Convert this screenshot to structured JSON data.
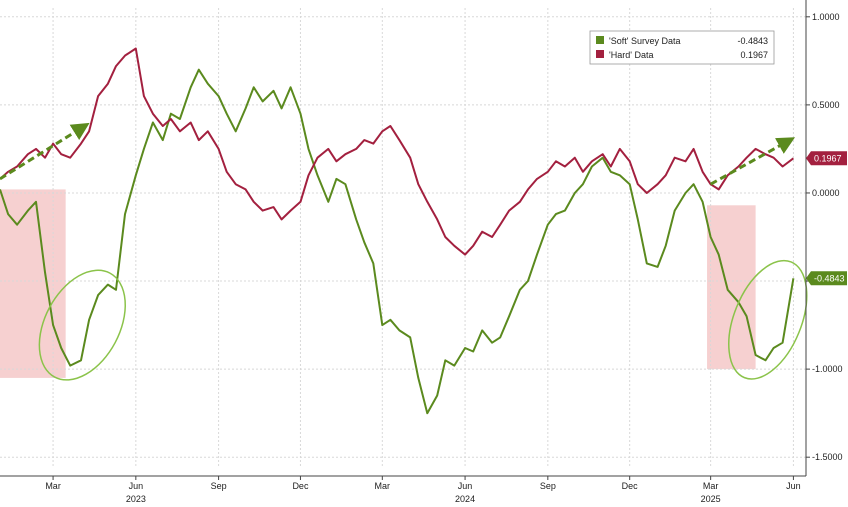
{
  "chart_data": {
    "type": "line",
    "y_ticks": [
      "1.0000",
      "0.5000",
      "0.0000",
      "-0.5000",
      "-1.0000",
      "-1.5000"
    ],
    "y_tick_values": [
      1.0,
      0.5,
      0.0,
      -0.5,
      -1.0,
      -1.5
    ],
    "ylim": [
      -1.55,
      1.05
    ],
    "x_month_ticks": [
      {
        "label": "Mar",
        "date": "2023-03"
      },
      {
        "label": "Jun",
        "date": "2023-06"
      },
      {
        "label": "Sep",
        "date": "2023-09"
      },
      {
        "label": "Dec",
        "date": "2023-12"
      },
      {
        "label": "Mar",
        "date": "2024-03"
      },
      {
        "label": "Jun",
        "date": "2024-06"
      },
      {
        "label": "Sep",
        "date": "2024-09"
      },
      {
        "label": "Dec",
        "date": "2024-12"
      },
      {
        "label": "Mar",
        "date": "2025-03"
      },
      {
        "label": "Jun",
        "date": "2025-06"
      }
    ],
    "x_year_labels": [
      {
        "label": "2023",
        "date": "2023-06"
      },
      {
        "label": "2024",
        "date": "2024-06"
      },
      {
        "label": "2025",
        "date": "2025-03"
      }
    ],
    "xlim": [
      "2023-01-01",
      "2025-06-15"
    ],
    "grid": true,
    "legend_position": "top-right",
    "series": [
      {
        "name": "'Soft' Survey Data",
        "last_label": "-0.4843",
        "color": "#5b8a1e",
        "x": [
          "2023-01-01",
          "2023-01-10",
          "2023-01-20",
          "2023-02-01",
          "2023-02-10",
          "2023-02-20",
          "2023-03-01",
          "2023-03-10",
          "2023-03-20",
          "2023-04-01",
          "2023-04-10",
          "2023-04-20",
          "2023-05-01",
          "2023-05-10",
          "2023-05-20",
          "2023-06-01",
          "2023-06-10",
          "2023-06-20",
          "2023-07-01",
          "2023-07-10",
          "2023-07-20",
          "2023-08-01",
          "2023-08-10",
          "2023-08-20",
          "2023-09-01",
          "2023-09-10",
          "2023-09-20",
          "2023-10-01",
          "2023-10-10",
          "2023-10-20",
          "2023-11-01",
          "2023-11-10",
          "2023-11-20",
          "2023-12-01",
          "2023-12-10",
          "2023-12-20",
          "2024-01-01",
          "2024-01-10",
          "2024-01-20",
          "2024-02-01",
          "2024-02-10",
          "2024-02-20",
          "2024-03-01",
          "2024-03-10",
          "2024-03-20",
          "2024-04-01",
          "2024-04-10",
          "2024-04-20",
          "2024-05-01",
          "2024-05-10",
          "2024-05-20",
          "2024-06-01",
          "2024-06-10",
          "2024-06-20",
          "2024-07-01",
          "2024-07-10",
          "2024-07-20",
          "2024-08-01",
          "2024-08-10",
          "2024-08-20",
          "2024-09-01",
          "2024-09-10",
          "2024-09-20",
          "2024-10-01",
          "2024-10-10",
          "2024-10-20",
          "2024-11-01",
          "2024-11-10",
          "2024-11-20",
          "2024-12-01",
          "2024-12-10",
          "2024-12-20",
          "2025-01-01",
          "2025-01-10",
          "2025-01-20",
          "2025-02-01",
          "2025-02-10",
          "2025-02-20",
          "2025-03-01",
          "2025-03-10",
          "2025-03-20",
          "2025-04-01",
          "2025-04-10",
          "2025-04-20",
          "2025-05-01",
          "2025-05-10",
          "2025-05-20",
          "2025-06-01"
        ],
        "values": [
          0.02,
          -0.12,
          -0.18,
          -0.1,
          -0.05,
          -0.45,
          -0.75,
          -0.88,
          -0.98,
          -0.95,
          -0.72,
          -0.58,
          -0.52,
          -0.55,
          -0.12,
          0.1,
          0.25,
          0.4,
          0.3,
          0.45,
          0.42,
          0.6,
          0.7,
          0.62,
          0.55,
          0.45,
          0.35,
          0.48,
          0.6,
          0.52,
          0.58,
          0.48,
          0.6,
          0.45,
          0.25,
          0.1,
          -0.05,
          0.08,
          0.05,
          -0.15,
          -0.28,
          -0.4,
          -0.75,
          -0.72,
          -0.78,
          -0.82,
          -1.05,
          -1.25,
          -1.15,
          -0.95,
          -0.98,
          -0.88,
          -0.9,
          -0.78,
          -0.85,
          -0.82,
          -0.7,
          -0.55,
          -0.5,
          -0.35,
          -0.18,
          -0.12,
          -0.1,
          0.0,
          0.05,
          0.15,
          0.2,
          0.12,
          0.1,
          0.05,
          -0.15,
          -0.4,
          -0.42,
          -0.3,
          -0.1,
          0.0,
          0.05,
          -0.05,
          -0.25,
          -0.35,
          -0.55,
          -0.62,
          -0.7,
          -0.92,
          -0.95,
          -0.88,
          -0.85,
          -0.4843
        ]
      },
      {
        "name": "'Hard' Data",
        "last_label": "0.1967",
        "color": "#a3203f",
        "x": [
          "2023-01-01",
          "2023-01-10",
          "2023-01-20",
          "2023-02-01",
          "2023-02-10",
          "2023-02-20",
          "2023-03-01",
          "2023-03-10",
          "2023-03-20",
          "2023-04-01",
          "2023-04-10",
          "2023-04-20",
          "2023-05-01",
          "2023-05-10",
          "2023-05-20",
          "2023-06-01",
          "2023-06-10",
          "2023-06-20",
          "2023-07-01",
          "2023-07-10",
          "2023-07-20",
          "2023-08-01",
          "2023-08-10",
          "2023-08-20",
          "2023-09-01",
          "2023-09-10",
          "2023-09-20",
          "2023-10-01",
          "2023-10-10",
          "2023-10-20",
          "2023-11-01",
          "2023-11-10",
          "2023-11-20",
          "2023-12-01",
          "2023-12-10",
          "2023-12-20",
          "2024-01-01",
          "2024-01-10",
          "2024-01-20",
          "2024-02-01",
          "2024-02-10",
          "2024-02-20",
          "2024-03-01",
          "2024-03-10",
          "2024-03-20",
          "2024-04-01",
          "2024-04-10",
          "2024-04-20",
          "2024-05-01",
          "2024-05-10",
          "2024-05-20",
          "2024-06-01",
          "2024-06-10",
          "2024-06-20",
          "2024-07-01",
          "2024-07-10",
          "2024-07-20",
          "2024-08-01",
          "2024-08-10",
          "2024-08-20",
          "2024-09-01",
          "2024-09-10",
          "2024-09-20",
          "2024-10-01",
          "2024-10-10",
          "2024-10-20",
          "2024-11-01",
          "2024-11-10",
          "2024-11-20",
          "2024-12-01",
          "2024-12-10",
          "2024-12-20",
          "2025-01-01",
          "2025-01-10",
          "2025-01-20",
          "2025-02-01",
          "2025-02-10",
          "2025-02-20",
          "2025-03-01",
          "2025-03-10",
          "2025-03-20",
          "2025-04-01",
          "2025-04-10",
          "2025-04-20",
          "2025-05-01",
          "2025-05-10",
          "2025-05-20",
          "2025-06-01"
        ],
        "values": [
          0.08,
          0.12,
          0.15,
          0.22,
          0.25,
          0.2,
          0.28,
          0.22,
          0.2,
          0.28,
          0.35,
          0.55,
          0.62,
          0.72,
          0.78,
          0.82,
          0.55,
          0.45,
          0.38,
          0.42,
          0.35,
          0.4,
          0.3,
          0.35,
          0.25,
          0.12,
          0.05,
          0.02,
          -0.05,
          -0.1,
          -0.08,
          -0.15,
          -0.1,
          -0.05,
          0.1,
          0.2,
          0.25,
          0.18,
          0.22,
          0.25,
          0.3,
          0.28,
          0.35,
          0.38,
          0.3,
          0.2,
          0.05,
          -0.05,
          -0.15,
          -0.25,
          -0.3,
          -0.35,
          -0.3,
          -0.22,
          -0.25,
          -0.18,
          -0.1,
          -0.05,
          0.02,
          0.08,
          0.12,
          0.18,
          0.15,
          0.2,
          0.12,
          0.18,
          0.22,
          0.15,
          0.25,
          0.18,
          0.05,
          0.0,
          0.05,
          0.1,
          0.2,
          0.18,
          0.25,
          0.12,
          0.05,
          0.02,
          0.1,
          0.15,
          0.2,
          0.25,
          0.22,
          0.2,
          0.15,
          0.1967
        ]
      }
    ]
  },
  "legend": {
    "soft_label": "'Soft' Survey Data",
    "soft_value": "-0.4843",
    "hard_label": "'Hard' Data",
    "hard_value": "0.1967"
  },
  "colors": {
    "soft": "#5b8a1e",
    "hard": "#a3203f",
    "shade": "#f6d0d0",
    "grid": "#d8d8d8"
  }
}
